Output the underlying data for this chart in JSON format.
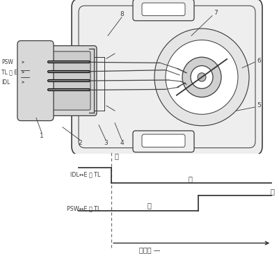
{
  "bg_color": "#ffffff",
  "line_color": "#3a3a3a",
  "gray_fill": "#d8d8d8",
  "light_fill": "#eeeeee",
  "white_fill": "#ffffff",
  "labels_left": [
    "PSW",
    "TL 或 E",
    "IDL"
  ],
  "chart_idl_label": "IDL↔E 或 TL",
  "chart_psw_label": "PSW↔E 或 TL",
  "chart_tong": "通",
  "chart_duan": "断",
  "chart_xjm": "节气门",
  "numbers": [
    "1",
    "2",
    "3",
    "4",
    "5",
    "6",
    "7",
    "8"
  ]
}
